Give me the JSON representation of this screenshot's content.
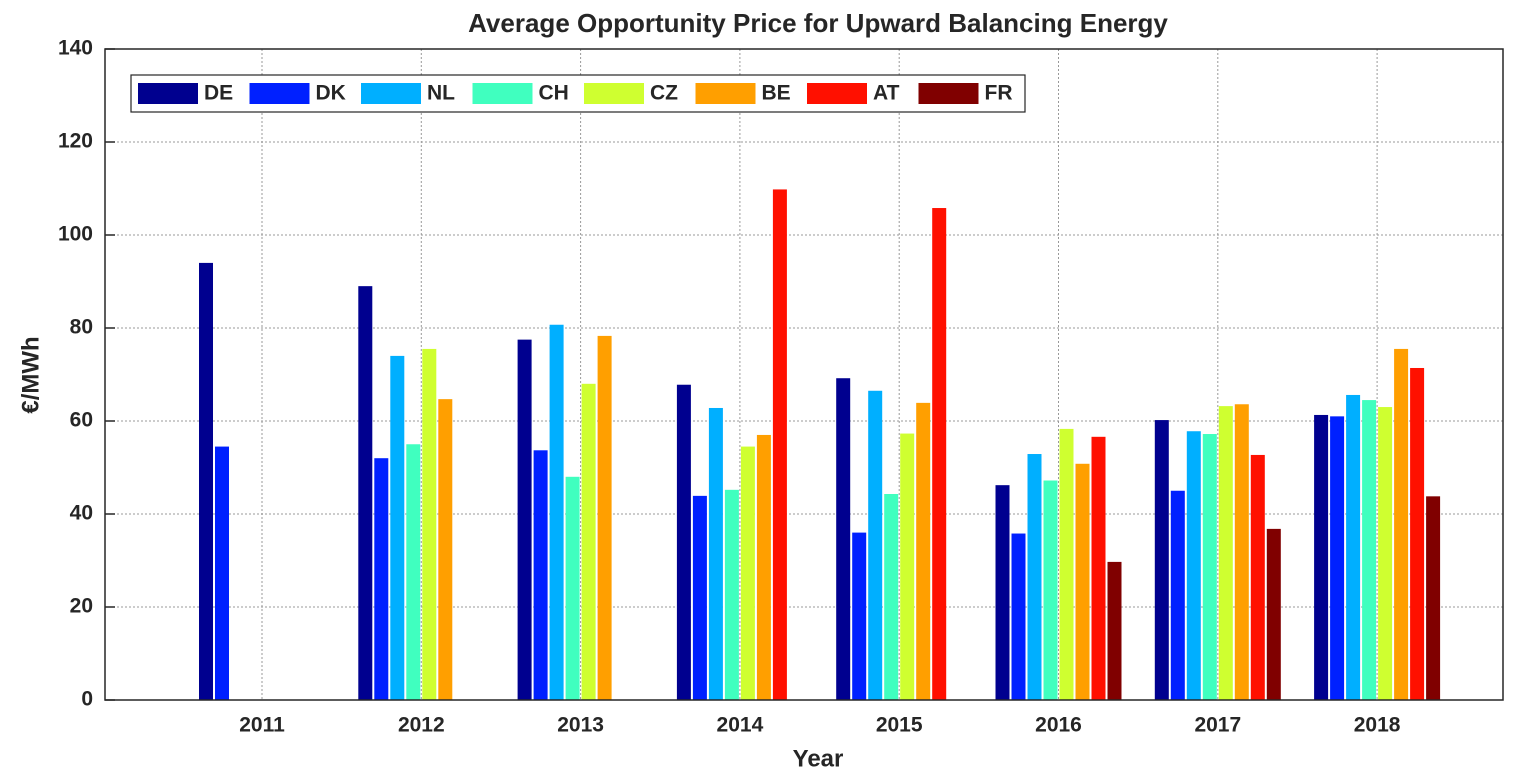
{
  "chart_data": {
    "type": "bar",
    "title": "Average Opportunity Price for Upward Balancing Energy",
    "x_label": "Year",
    "y_label": "€/MWh",
    "categories": [
      "2011",
      "2012",
      "2013",
      "2014",
      "2015",
      "2016",
      "2017",
      "2018"
    ],
    "series": [
      {
        "name": "DE",
        "color": "#00008f",
        "values": [
          94,
          89,
          77.5,
          67.8,
          69.2,
          46.2,
          60.2,
          61.3
        ]
      },
      {
        "name": "DK",
        "color": "#0020ff",
        "values": [
          54.5,
          52,
          53.7,
          43.9,
          36,
          35.8,
          45,
          61
        ]
      },
      {
        "name": "NL",
        "color": "#00afff",
        "values": [
          null,
          74,
          80.7,
          62.8,
          66.5,
          52.9,
          57.8,
          65.6
        ]
      },
      {
        "name": "CH",
        "color": "#40ffbf",
        "values": [
          null,
          55,
          48,
          45.2,
          44.3,
          47.2,
          57.2,
          64.5
        ]
      },
      {
        "name": "CZ",
        "color": "#cfff30",
        "values": [
          null,
          75.5,
          68,
          54.5,
          57.3,
          58.3,
          63.2,
          63
        ]
      },
      {
        "name": "BE",
        "color": "#ff9f00",
        "values": [
          null,
          64.7,
          78.3,
          57,
          63.9,
          50.8,
          63.6,
          75.5
        ]
      },
      {
        "name": "AT",
        "color": "#ff1000",
        "values": [
          null,
          null,
          null,
          109.8,
          105.8,
          56.6,
          52.7,
          71.4
        ]
      },
      {
        "name": "FR",
        "color": "#800000",
        "values": [
          null,
          null,
          null,
          null,
          null,
          29.7,
          36.8,
          43.8
        ]
      }
    ],
    "ylim": [
      0,
      140
    ],
    "yticks": [
      0,
      20,
      40,
      60,
      80,
      100,
      120,
      140
    ],
    "grid": true,
    "legend": "upper left"
  }
}
